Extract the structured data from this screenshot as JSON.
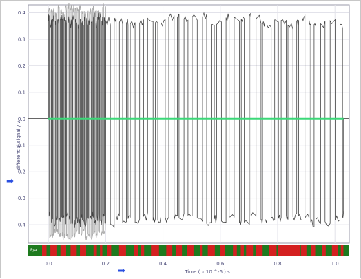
{
  "chart_data": {
    "type": "line",
    "title": "",
    "xlabel": "Time  ( x 10 ^-6 ) s",
    "ylabel": "differential signal / V",
    "xlim": [
      -0.07,
      1.05
    ],
    "ylim": [
      -0.47,
      0.43
    ],
    "x_ticks": [
      0.0,
      0.2,
      0.4,
      0.6,
      0.8,
      1.0
    ],
    "x_tick_labels": [
      "0.0",
      "0.2",
      "0.4",
      "0.6",
      "0.8",
      "1.0"
    ],
    "y_ticks": [
      0.4,
      0.3,
      0.2,
      0.1,
      0.0,
      -0.1,
      -0.2,
      -0.3,
      -0.4
    ],
    "y_tick_labels": [
      "0.4",
      "0.3",
      "0.2",
      "0.1",
      "0.0",
      "-0.1",
      "-0.2",
      "-0.3",
      "-0.4"
    ],
    "grid": true,
    "series": [
      {
        "color": "#444444",
        "x_start": 0.0,
        "x_end": 1.03,
        "high_level": 0.37,
        "low_level": -0.38,
        "idle_level": 0.0,
        "description_of_shape": "differential bus signal toggling between about +0.37 V and -0.38 V, dense burst 0.0-0.2"
      },
      {
        "color": "#aaaaaa",
        "x_start": 0.0,
        "x_end": 0.2,
        "high_level": 0.41,
        "low_level": -0.44
      },
      {
        "color": "#3cd878",
        "x": [
          -0.07,
          1.03
        ],
        "y": [
          0.0,
          0.0
        ]
      }
    ],
    "bus_decode_bar": {
      "colors": [
        "#1e7a1e",
        "#d42020"
      ],
      "prefix_label": "P/a"
    }
  },
  "navigation": {
    "left_arrow_icon": "arrow-right-icon",
    "bottom_arrow_icon": "arrow-right-icon",
    "left_arrow_glyph": "➡",
    "bottom_arrow_glyph": "➡"
  }
}
